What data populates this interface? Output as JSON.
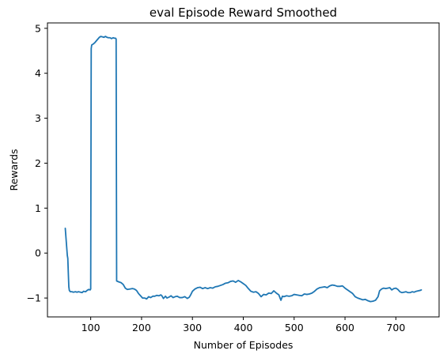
{
  "chart_data": {
    "type": "line",
    "title": "eval Episode Reward Smoothed",
    "xlabel": "Number of Episodes",
    "ylabel": "Rewards",
    "xlim": [
      15,
      785
    ],
    "ylim": [
      -1.42,
      5.12
    ],
    "xticks": [
      100,
      200,
      300,
      400,
      500,
      600,
      700
    ],
    "yticks": [
      -1,
      0,
      1,
      2,
      3,
      4,
      5
    ],
    "grid": false,
    "series": [
      {
        "color": "#1f77b4",
        "points": [
          [
            50,
            0.55
          ],
          [
            52,
            0.25
          ],
          [
            54,
            -0.05
          ],
          [
            55,
            -0.12
          ],
          [
            56,
            -0.45
          ],
          [
            57,
            -0.75
          ],
          [
            58,
            -0.83
          ],
          [
            60,
            -0.86
          ],
          [
            63,
            -0.86
          ],
          [
            66,
            -0.87
          ],
          [
            70,
            -0.86
          ],
          [
            73,
            -0.87
          ],
          [
            76,
            -0.86
          ],
          [
            80,
            -0.87
          ],
          [
            83,
            -0.88
          ],
          [
            86,
            -0.85
          ],
          [
            90,
            -0.86
          ],
          [
            93,
            -0.83
          ],
          [
            96,
            -0.81
          ],
          [
            99,
            -0.82
          ],
          [
            100,
            -0.8
          ],
          [
            101,
            4.55
          ],
          [
            102,
            4.63
          ],
          [
            105,
            4.65
          ],
          [
            108,
            4.68
          ],
          [
            111,
            4.72
          ],
          [
            114,
            4.76
          ],
          [
            117,
            4.8
          ],
          [
            120,
            4.82
          ],
          [
            123,
            4.81
          ],
          [
            126,
            4.8
          ],
          [
            129,
            4.82
          ],
          [
            132,
            4.8
          ],
          [
            135,
            4.79
          ],
          [
            138,
            4.79
          ],
          [
            141,
            4.77
          ],
          [
            144,
            4.79
          ],
          [
            147,
            4.78
          ],
          [
            149,
            4.78
          ],
          [
            150,
            4.76
          ],
          [
            151,
            -0.62
          ],
          [
            155,
            -0.64
          ],
          [
            160,
            -0.66
          ],
          [
            164,
            -0.7
          ],
          [
            168,
            -0.78
          ],
          [
            172,
            -0.81
          ],
          [
            177,
            -0.8
          ],
          [
            182,
            -0.79
          ],
          [
            186,
            -0.8
          ],
          [
            190,
            -0.83
          ],
          [
            194,
            -0.9
          ],
          [
            198,
            -0.95
          ],
          [
            202,
            -1.0
          ],
          [
            206,
            -1.0
          ],
          [
            210,
            -1.02
          ],
          [
            214,
            -0.97
          ],
          [
            218,
            -0.99
          ],
          [
            222,
            -0.96
          ],
          [
            226,
            -0.96
          ],
          [
            230,
            -0.94
          ],
          [
            234,
            -0.95
          ],
          [
            238,
            -0.93
          ],
          [
            240,
            -0.95
          ],
          [
            243,
            -1.01
          ],
          [
            247,
            -0.96
          ],
          [
            250,
            -1.0
          ],
          [
            254,
            -0.98
          ],
          [
            258,
            -0.95
          ],
          [
            262,
            -0.99
          ],
          [
            266,
            -0.97
          ],
          [
            270,
            -0.96
          ],
          [
            275,
            -0.99
          ],
          [
            280,
            -0.99
          ],
          [
            285,
            -0.97
          ],
          [
            290,
            -1.01
          ],
          [
            294,
            -0.98
          ],
          [
            297,
            -0.92
          ],
          [
            300,
            -0.85
          ],
          [
            305,
            -0.8
          ],
          [
            310,
            -0.77
          ],
          [
            315,
            -0.76
          ],
          [
            320,
            -0.79
          ],
          [
            325,
            -0.77
          ],
          [
            330,
            -0.79
          ],
          [
            335,
            -0.77
          ],
          [
            340,
            -0.78
          ],
          [
            345,
            -0.75
          ],
          [
            350,
            -0.74
          ],
          [
            355,
            -0.72
          ],
          [
            360,
            -0.7
          ],
          [
            365,
            -0.67
          ],
          [
            370,
            -0.66
          ],
          [
            375,
            -0.63
          ],
          [
            380,
            -0.62
          ],
          [
            385,
            -0.65
          ],
          [
            390,
            -0.61
          ],
          [
            395,
            -0.64
          ],
          [
            400,
            -0.68
          ],
          [
            405,
            -0.72
          ],
          [
            410,
            -0.79
          ],
          [
            415,
            -0.85
          ],
          [
            420,
            -0.87
          ],
          [
            425,
            -0.86
          ],
          [
            430,
            -0.9
          ],
          [
            435,
            -0.97
          ],
          [
            440,
            -0.92
          ],
          [
            445,
            -0.93
          ],
          [
            450,
            -0.89
          ],
          [
            455,
            -0.9
          ],
          [
            460,
            -0.84
          ],
          [
            465,
            -0.89
          ],
          [
            470,
            -0.93
          ],
          [
            474,
            -1.05
          ],
          [
            477,
            -0.96
          ],
          [
            480,
            -0.97
          ],
          [
            485,
            -0.95
          ],
          [
            490,
            -0.96
          ],
          [
            495,
            -0.95
          ],
          [
            500,
            -0.92
          ],
          [
            505,
            -0.93
          ],
          [
            510,
            -0.94
          ],
          [
            515,
            -0.95
          ],
          [
            520,
            -0.91
          ],
          [
            525,
            -0.92
          ],
          [
            530,
            -0.91
          ],
          [
            535,
            -0.89
          ],
          [
            540,
            -0.85
          ],
          [
            545,
            -0.8
          ],
          [
            550,
            -0.77
          ],
          [
            555,
            -0.76
          ],
          [
            560,
            -0.75
          ],
          [
            565,
            -0.77
          ],
          [
            570,
            -0.73
          ],
          [
            575,
            -0.71
          ],
          [
            580,
            -0.72
          ],
          [
            585,
            -0.74
          ],
          [
            590,
            -0.74
          ],
          [
            595,
            -0.73
          ],
          [
            600,
            -0.78
          ],
          [
            605,
            -0.82
          ],
          [
            610,
            -0.86
          ],
          [
            615,
            -0.9
          ],
          [
            620,
            -0.97
          ],
          [
            625,
            -1.0
          ],
          [
            630,
            -1.02
          ],
          [
            635,
            -1.04
          ],
          [
            640,
            -1.03
          ],
          [
            645,
            -1.06
          ],
          [
            650,
            -1.08
          ],
          [
            655,
            -1.07
          ],
          [
            660,
            -1.05
          ],
          [
            665,
            -0.97
          ],
          [
            668,
            -0.84
          ],
          [
            672,
            -0.8
          ],
          [
            676,
            -0.78
          ],
          [
            680,
            -0.79
          ],
          [
            684,
            -0.78
          ],
          [
            688,
            -0.77
          ],
          [
            692,
            -0.82
          ],
          [
            696,
            -0.79
          ],
          [
            700,
            -0.78
          ],
          [
            704,
            -0.81
          ],
          [
            708,
            -0.86
          ],
          [
            712,
            -0.88
          ],
          [
            716,
            -0.87
          ],
          [
            720,
            -0.86
          ],
          [
            724,
            -0.88
          ],
          [
            728,
            -0.88
          ],
          [
            732,
            -0.86
          ],
          [
            736,
            -0.87
          ],
          [
            740,
            -0.85
          ],
          [
            744,
            -0.84
          ],
          [
            748,
            -0.83
          ],
          [
            750,
            -0.82
          ]
        ]
      }
    ]
  }
}
